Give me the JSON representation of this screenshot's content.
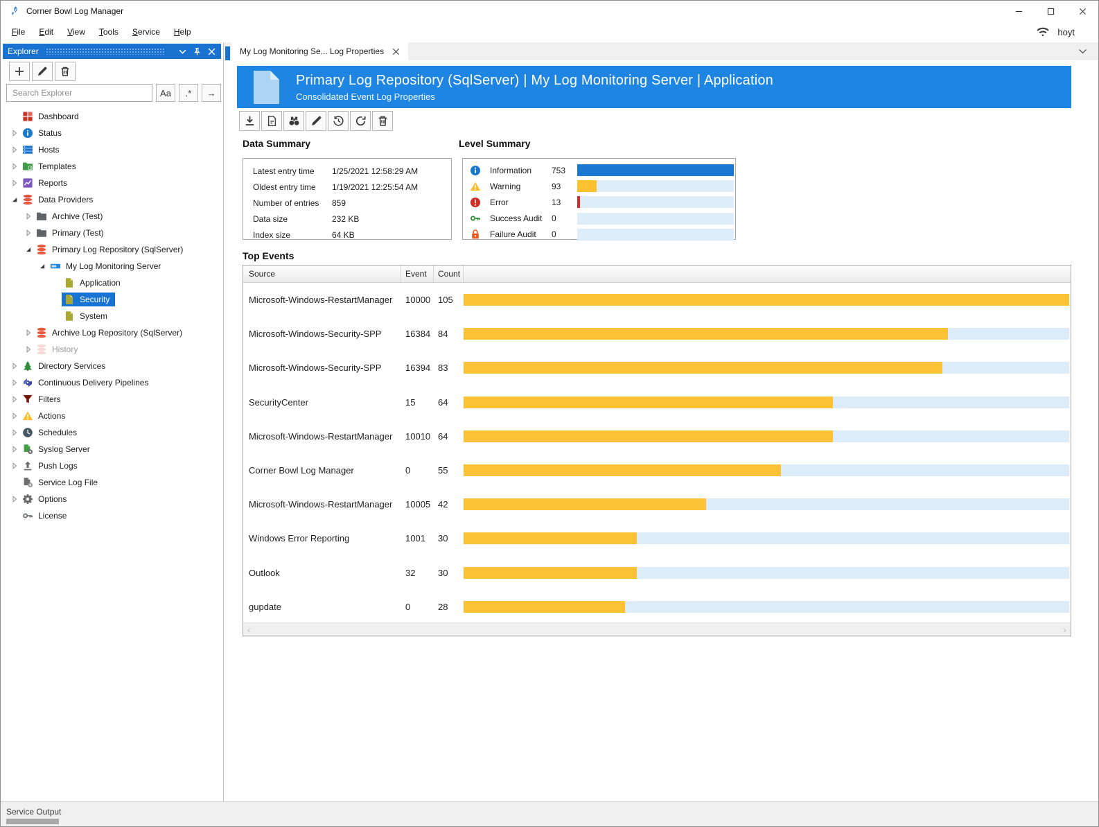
{
  "window": {
    "title": "Corner Bowl Log Manager",
    "user": "hoyt",
    "controls": [
      "minimize",
      "maximize",
      "close"
    ],
    "menu": [
      "File",
      "Edit",
      "View",
      "Tools",
      "Service",
      "Help"
    ]
  },
  "explorer": {
    "title": "Explorer",
    "toolbar": [
      {
        "name": "add",
        "icon": "plus-icon"
      },
      {
        "name": "edit",
        "icon": "pencil-icon"
      },
      {
        "name": "delete",
        "icon": "trash-icon"
      }
    ],
    "search": {
      "placeholder": "Search Explorer",
      "buttons": [
        "Aa",
        ".*",
        "→"
      ]
    },
    "tree": [
      {
        "label": "Dashboard",
        "icon": "dashboard-icon",
        "indent": 0,
        "expander": "none"
      },
      {
        "label": "Status",
        "icon": "status-icon",
        "indent": 0,
        "expander": "collapsed"
      },
      {
        "label": "Hosts",
        "icon": "hosts-icon",
        "indent": 0,
        "expander": "collapsed"
      },
      {
        "label": "Templates",
        "icon": "templates-icon",
        "indent": 0,
        "expander": "collapsed"
      },
      {
        "label": "Reports",
        "icon": "reports-icon",
        "indent": 0,
        "expander": "collapsed"
      },
      {
        "label": "Data Providers",
        "icon": "database-icon",
        "indent": 0,
        "expander": "expanded"
      },
      {
        "label": "Archive (Test)",
        "icon": "folder-icon",
        "indent": 1,
        "expander": "collapsed"
      },
      {
        "label": "Primary (Test)",
        "icon": "folder-icon",
        "indent": 1,
        "expander": "collapsed"
      },
      {
        "label": "Primary Log Repository (SqlServer)",
        "icon": "database-icon",
        "indent": 1,
        "expander": "expanded"
      },
      {
        "label": "My Log Monitoring Server",
        "icon": "server-icon",
        "indent": 2,
        "expander": "expanded"
      },
      {
        "label": "Application",
        "icon": "log-document-icon",
        "indent": 3,
        "expander": "none"
      },
      {
        "label": "Security",
        "icon": "log-document-icon",
        "indent": 3,
        "expander": "none",
        "selected": true
      },
      {
        "label": "System",
        "icon": "log-document-icon",
        "indent": 3,
        "expander": "none"
      },
      {
        "label": "Archive Log Repository (SqlServer)",
        "icon": "database-icon",
        "indent": 1,
        "expander": "collapsed"
      },
      {
        "label": "History",
        "icon": "database-muted-icon",
        "indent": 1,
        "expander": "collapsed",
        "muted": true
      },
      {
        "label": "Directory Services",
        "icon": "directory-services-icon",
        "indent": 0,
        "expander": "collapsed"
      },
      {
        "label": "Continuous Delivery Pipelines",
        "icon": "pipelines-icon",
        "indent": 0,
        "expander": "collapsed"
      },
      {
        "label": "Filters",
        "icon": "filter-icon",
        "indent": 0,
        "expander": "collapsed"
      },
      {
        "label": "Actions",
        "icon": "actions-icon",
        "indent": 0,
        "expander": "collapsed"
      },
      {
        "label": "Schedules",
        "icon": "schedules-icon",
        "indent": 0,
        "expander": "collapsed"
      },
      {
        "label": "Syslog Server",
        "icon": "syslog-icon",
        "indent": 0,
        "expander": "collapsed"
      },
      {
        "label": "Push Logs",
        "icon": "push-logs-icon",
        "indent": 0,
        "expander": "collapsed"
      },
      {
        "label": "Service Log File",
        "icon": "service-log-icon",
        "indent": 0,
        "expander": "none"
      },
      {
        "label": "Options",
        "icon": "options-icon",
        "indent": 0,
        "expander": "collapsed"
      },
      {
        "label": "License",
        "icon": "license-icon",
        "indent": 0,
        "expander": "none"
      }
    ]
  },
  "tab": {
    "label": "My Log Monitoring Se... Log Properties"
  },
  "banner": {
    "title": "Primary Log Repository (SqlServer) | My Log Monitoring Server | Application",
    "subtitle": "Consolidated Event Log Properties"
  },
  "toolbar": [
    {
      "name": "download",
      "icon": "download-icon"
    },
    {
      "name": "report",
      "icon": "report-icon"
    },
    {
      "name": "find",
      "icon": "binoculars-icon"
    },
    {
      "name": "edit",
      "icon": "pencil-icon"
    },
    {
      "name": "history",
      "icon": "history-icon"
    },
    {
      "name": "refresh",
      "icon": "refresh-icon"
    },
    {
      "name": "delete",
      "icon": "trash-icon"
    }
  ],
  "data_summary": {
    "title": "Data Summary",
    "rows": [
      {
        "label": "Latest entry time",
        "value": "1/25/2021 12:58:29 AM"
      },
      {
        "label": "Oldest entry time",
        "value": "1/19/2021 12:25:54 AM"
      },
      {
        "label": "Number of entries",
        "value": "859"
      },
      {
        "label": "Data size",
        "value": "232 KB"
      },
      {
        "label": "Index size",
        "value": "64 KB"
      }
    ]
  },
  "level_summary": {
    "title": "Level Summary",
    "max": 753,
    "rows": [
      {
        "label": "Information",
        "count": 753,
        "icon": "info-icon",
        "color": "#1878d2"
      },
      {
        "label": "Warning",
        "count": 93,
        "icon": "warning-icon",
        "color": "#fcc12f"
      },
      {
        "label": "Error",
        "count": 13,
        "icon": "error-icon",
        "color": "#d02b27"
      },
      {
        "label": "Success Audit",
        "count": 0,
        "icon": "success-audit-icon",
        "color": "#2e8b3a"
      },
      {
        "label": "Failure Audit",
        "count": 0,
        "icon": "failure-audit-icon",
        "color": "#e8551e"
      }
    ]
  },
  "top_events": {
    "title": "Top Events",
    "columns": [
      "Source",
      "Event",
      "Count"
    ],
    "max_count": 105,
    "bar_color": "#fcc235",
    "rows": [
      {
        "source": "Microsoft-Windows-RestartManager",
        "event": "10000",
        "count": 105
      },
      {
        "source": "Microsoft-Windows-Security-SPP",
        "event": "16384",
        "count": 84
      },
      {
        "source": "Microsoft-Windows-Security-SPP",
        "event": "16394",
        "count": 83
      },
      {
        "source": "SecurityCenter",
        "event": "15",
        "count": 64
      },
      {
        "source": "Microsoft-Windows-RestartManager",
        "event": "10010",
        "count": 64
      },
      {
        "source": "Corner Bowl Log Manager",
        "event": "0",
        "count": 55
      },
      {
        "source": "Microsoft-Windows-RestartManager",
        "event": "10005",
        "count": 42
      },
      {
        "source": "Windows Error Reporting",
        "event": "1001",
        "count": 30
      },
      {
        "source": "Outlook",
        "event": "32",
        "count": 30
      },
      {
        "source": "gupdate",
        "event": "0",
        "count": 28
      }
    ]
  },
  "status_bar": {
    "label": "Service Output"
  },
  "colors": {
    "banner_blue": "#1e86e2",
    "explorer_title_blue": "#1a72d0",
    "selection_blue": "#1973d2",
    "bar_track": "#dcecf8",
    "bar_yellow": "#fcc235",
    "info_bar_blue": "#1878d2"
  }
}
